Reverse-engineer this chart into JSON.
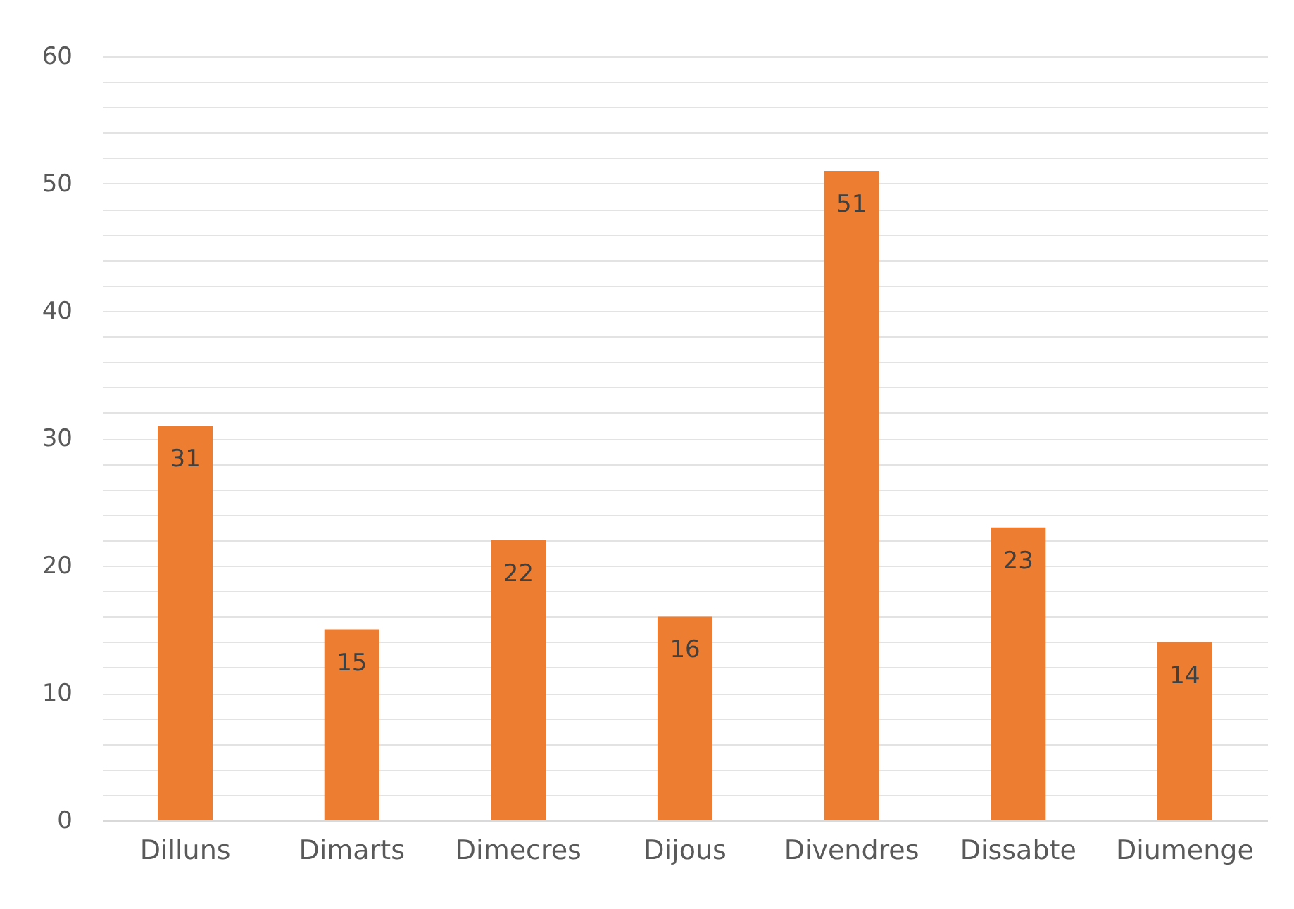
{
  "chart_data": {
    "type": "bar",
    "categories": [
      "Dilluns",
      "Dimarts",
      "Dimecres",
      "Dijous",
      "Divendres",
      "Dissabte",
      "Diumenge"
    ],
    "values": [
      31,
      15,
      22,
      16,
      51,
      23,
      14
    ],
    "color": "#ed7d31",
    "ylim": [
      0,
      60
    ],
    "yticks": [
      0,
      {
        "value": 2,
        "label": null
      },
      {
        "value": 4,
        "label": null
      },
      {
        "value": 6,
        "label": null
      },
      {
        "value": 8,
        "label": null
      },
      10,
      {
        "value": 12,
        "label": null
      },
      {
        "value": 14,
        "label": null
      },
      {
        "value": 16,
        "label": null
      },
      {
        "value": 18,
        "label": null
      },
      20,
      {
        "value": 22,
        "label": null
      },
      {
        "value": 24,
        "label": null
      },
      {
        "value": 26,
        "label": null
      },
      {
        "value": 28,
        "label": null
      },
      30,
      {
        "value": 32,
        "label": null
      },
      {
        "value": 34,
        "label": null
      },
      {
        "value": 36,
        "label": null
      },
      {
        "value": 38,
        "label": null
      },
      40,
      {
        "value": 42,
        "label": null
      },
      {
        "value": 44,
        "label": null
      },
      {
        "value": 46,
        "label": null
      },
      {
        "value": 48,
        "label": null
      },
      50,
      {
        "value": 52,
        "label": null
      },
      {
        "value": 54,
        "label": null
      },
      {
        "value": 56,
        "label": null
      },
      {
        "value": 58,
        "label": null
      },
      60
    ],
    "grid": true,
    "data_labels": true
  }
}
